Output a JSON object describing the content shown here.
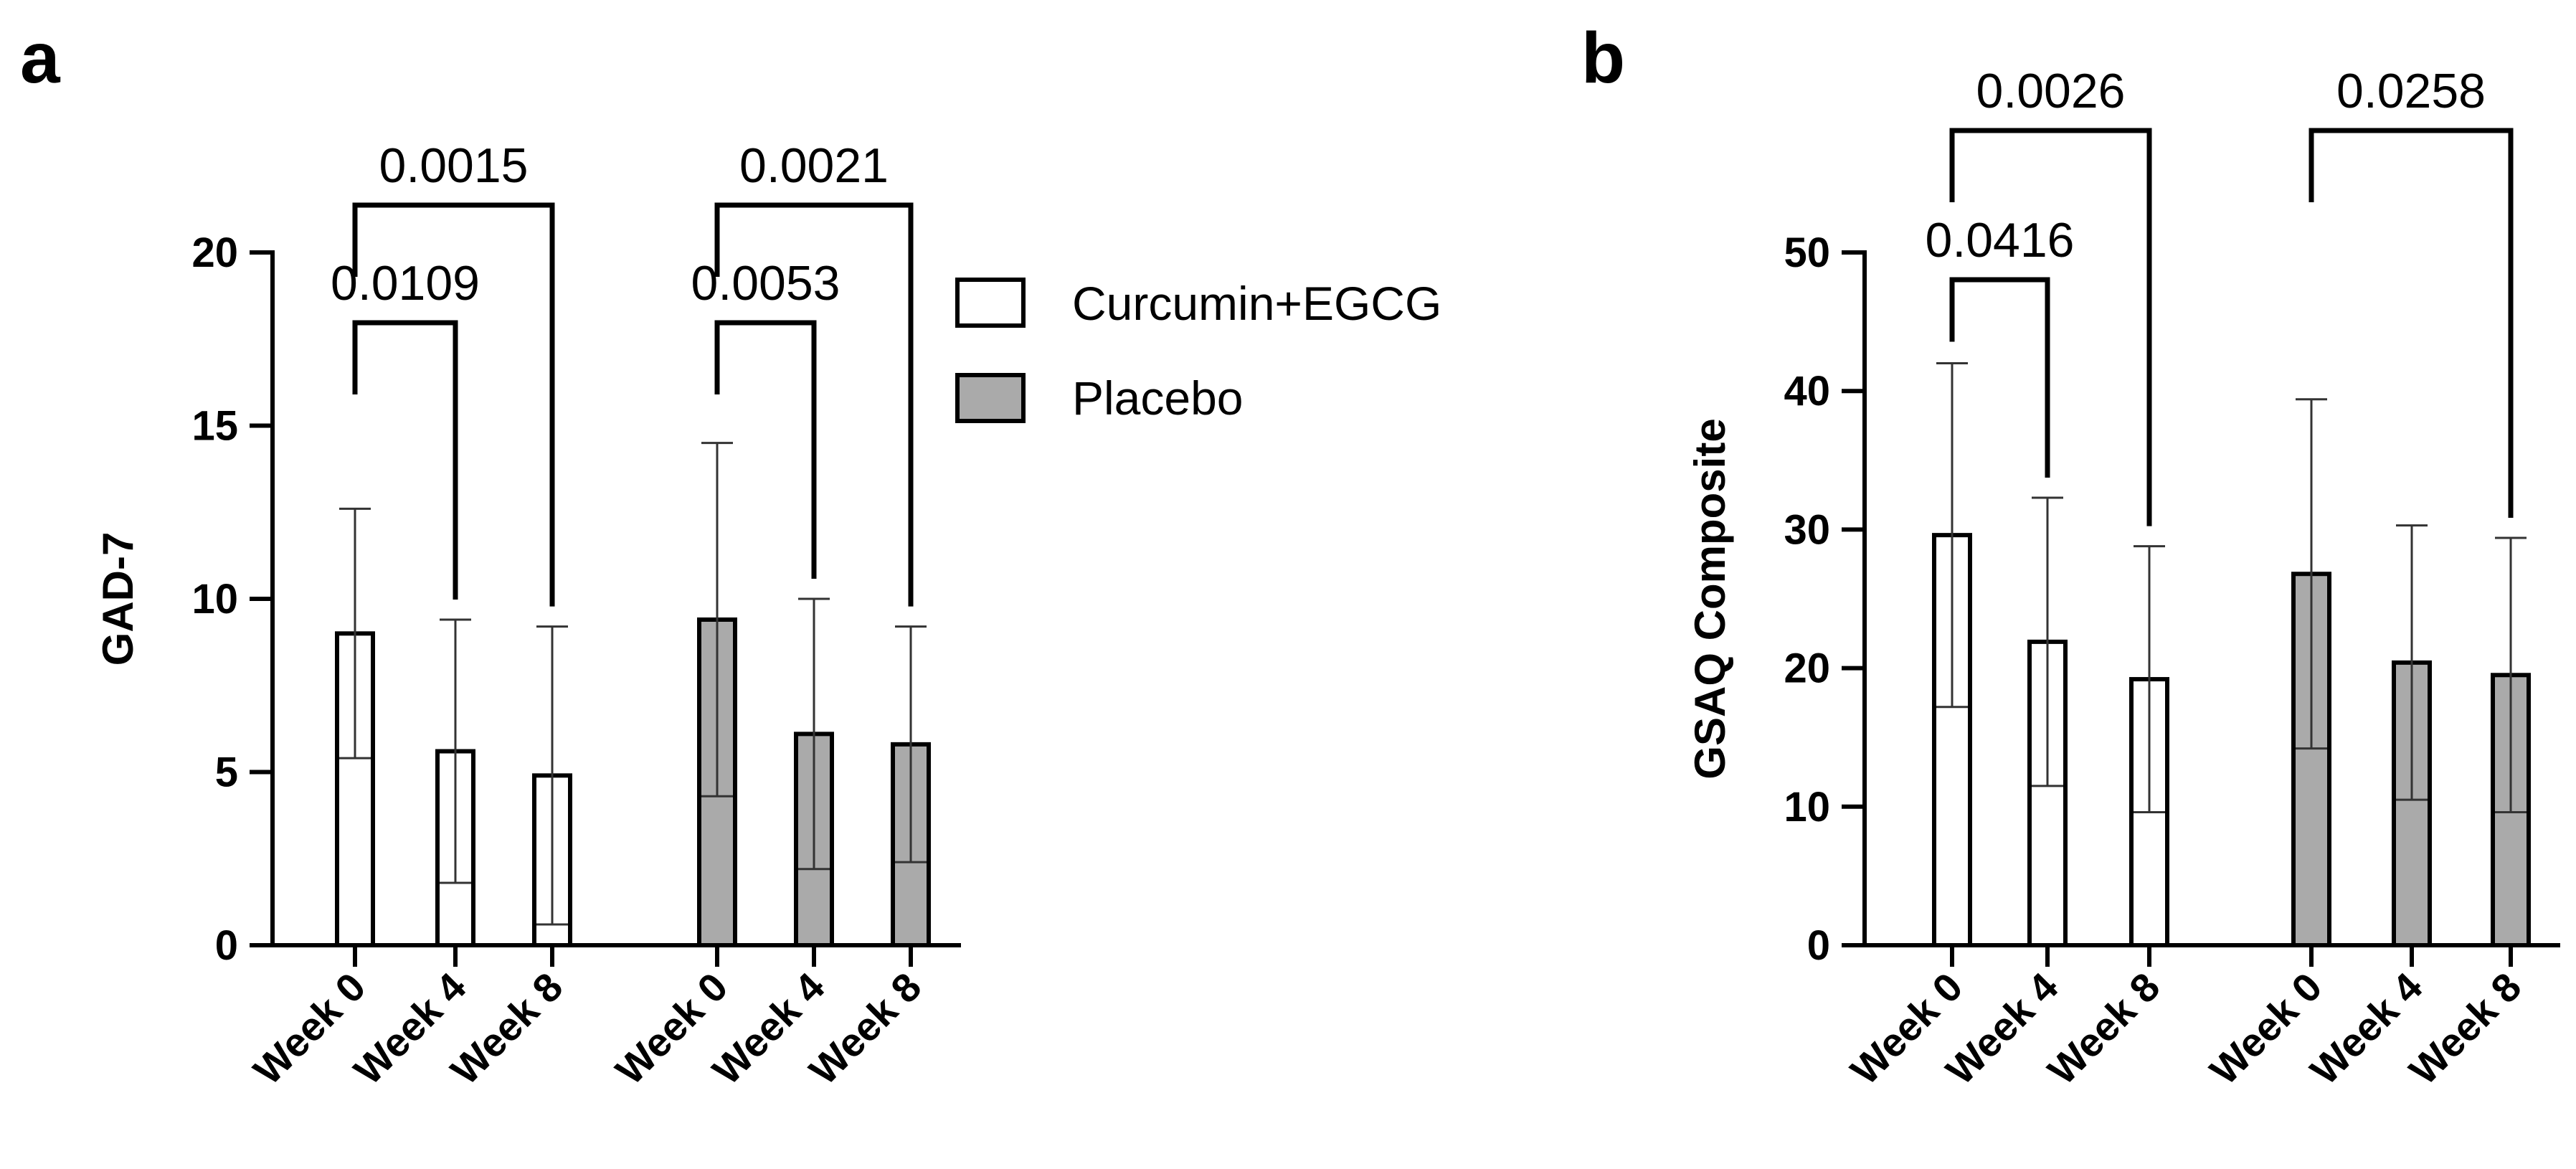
{
  "chart_data": [
    {
      "panel": "a",
      "type": "bar",
      "ylabel": "GAD-7",
      "ylim": [
        0,
        20
      ],
      "yticks": [
        0,
        5,
        10,
        15,
        20
      ],
      "categories": [
        "Week 0",
        "Week 4",
        "Week 8"
      ],
      "series": [
        {
          "name": "Curcumin+EGCG",
          "values": [
            9.0,
            5.6,
            4.9
          ],
          "errors": [
            3.6,
            3.8,
            4.3
          ],
          "color": "#ffffff"
        },
        {
          "name": "Placebo",
          "values": [
            9.4,
            6.1,
            5.8
          ],
          "errors": [
            5.1,
            3.9,
            3.4
          ],
          "color": "#aaaaaa"
        }
      ],
      "annotations": [
        {
          "series": 0,
          "from": 0,
          "to": 1,
          "label": "0.0109"
        },
        {
          "series": 0,
          "from": 0,
          "to": 2,
          "label": "0.0015"
        },
        {
          "series": 1,
          "from": 0,
          "to": 1,
          "label": "0.0053"
        },
        {
          "series": 1,
          "from": 0,
          "to": 2,
          "label": "0.0021"
        }
      ]
    },
    {
      "panel": "b",
      "type": "bar",
      "ylabel": "GSAQ Composite",
      "ylim": [
        0,
        50
      ],
      "yticks": [
        0,
        10,
        20,
        30,
        40,
        50
      ],
      "categories": [
        "Week 0",
        "Week 4",
        "Week 8"
      ],
      "series": [
        {
          "name": "Curcumin+EGCG",
          "values": [
            29.6,
            21.9,
            19.2
          ],
          "errors": [
            12.4,
            10.4,
            9.6
          ],
          "color": "#ffffff"
        },
        {
          "name": "Placebo",
          "values": [
            26.8,
            20.4,
            19.5
          ],
          "errors": [
            12.6,
            9.9,
            9.9
          ],
          "color": "#aaaaaa"
        }
      ],
      "annotations": [
        {
          "series": 0,
          "from": 0,
          "to": 1,
          "label": "0.0416"
        },
        {
          "series": 0,
          "from": 0,
          "to": 2,
          "label": "0.0026"
        },
        {
          "series": 1,
          "from": 0,
          "to": 2,
          "label": "0.0258"
        }
      ]
    }
  ],
  "legend": [
    {
      "label": "Curcumin+EGCG",
      "color": "#ffffff"
    },
    {
      "label": "Placebo",
      "color": "#aaaaaa"
    }
  ]
}
